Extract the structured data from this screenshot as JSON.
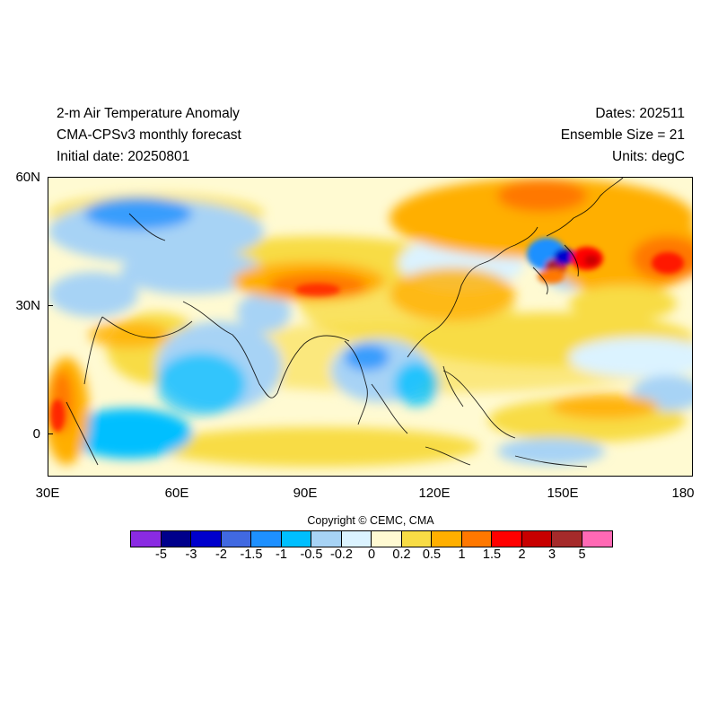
{
  "header": {
    "title": "2-m Air Temperature Anomaly",
    "subtitle": "CMA-CPSv3 monthly forecast",
    "initial_date": "Initial date: 20250801",
    "dates": "Dates: 202511",
    "ensemble": "Ensemble Size = 21",
    "units": "Units: degC"
  },
  "map": {
    "lon_range": [
      30,
      180
    ],
    "lat_range": [
      -10,
      60
    ],
    "y_ticks": [
      "60N",
      "30N",
      "0"
    ],
    "x_ticks": [
      "30E",
      "60E",
      "90E",
      "120E",
      "150E",
      "180"
    ]
  },
  "copyright": "Copyright © CEMC, CMA",
  "colorbar": {
    "colors": [
      "#8a2be2",
      "#00008b",
      "#0000cd",
      "#4169e1",
      "#1e90ff",
      "#00bfff",
      "#a7d3f5",
      "#dbf3ff",
      "#fffad2",
      "#f8dc45",
      "#ffaf00",
      "#ff7800",
      "#ff0000",
      "#c80000",
      "#a52a2a",
      "#ff69b4"
    ],
    "labels": [
      "-5",
      "-3",
      "-2",
      "-1.5",
      "-1",
      "-0.5",
      "-0.2",
      "0",
      "0.2",
      "0.5",
      "1",
      "1.5",
      "2",
      "3",
      "5"
    ]
  }
}
